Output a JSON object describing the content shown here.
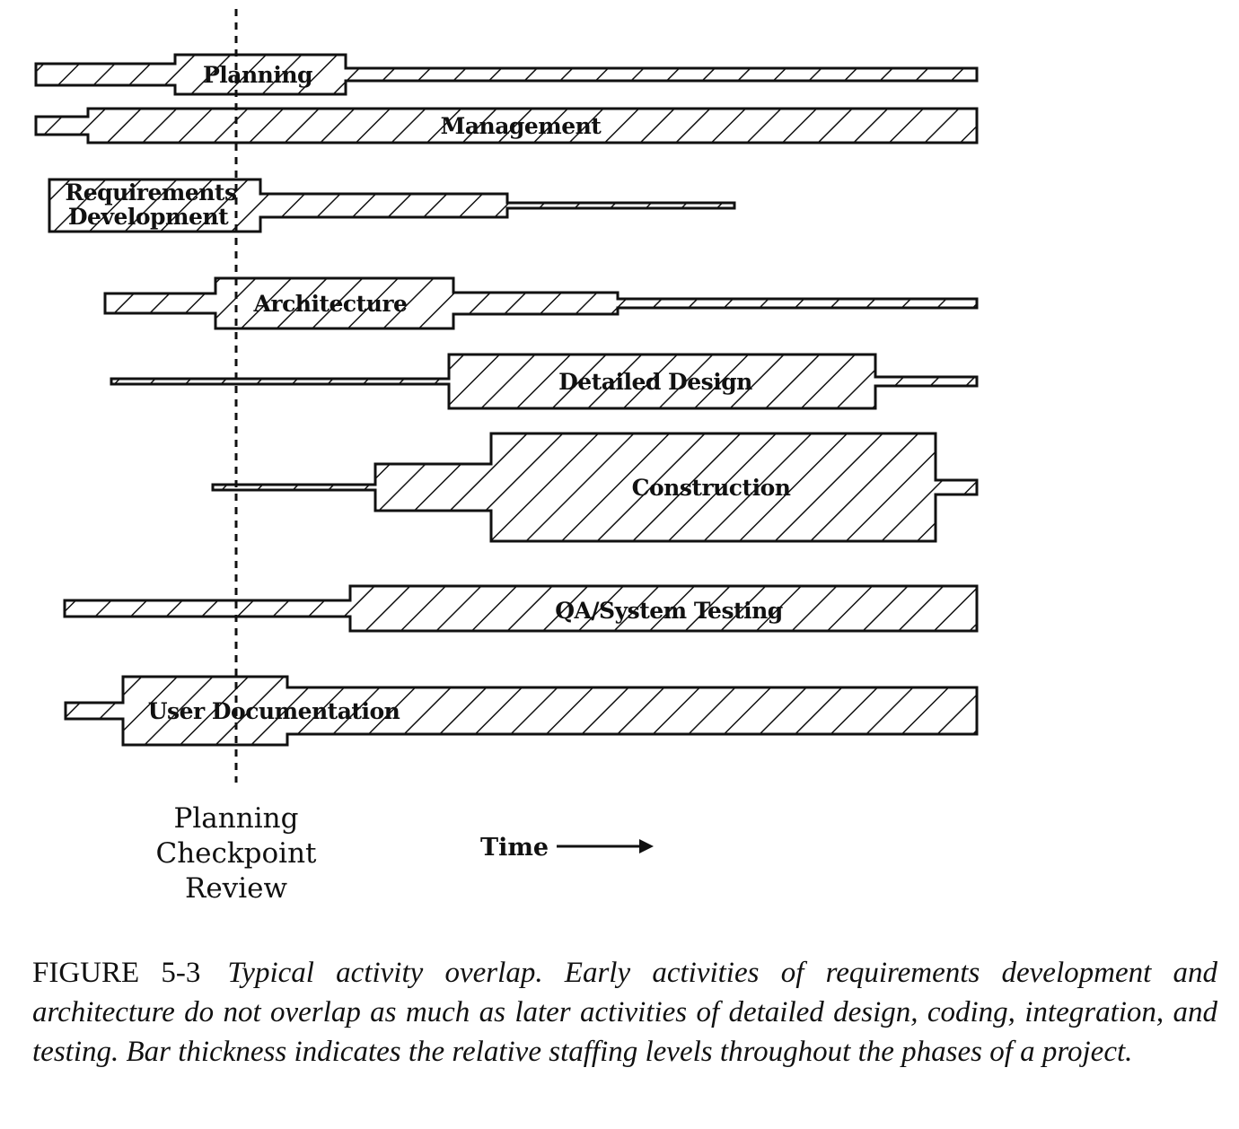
{
  "activities": [
    {
      "label": "Planning"
    },
    {
      "label": "Management"
    },
    {
      "label": "Requirements",
      "label2": "Development"
    },
    {
      "label": "Architecture"
    },
    {
      "label": "Detailed Design"
    },
    {
      "label": "Construction"
    },
    {
      "label": "QA/System Testing"
    },
    {
      "label": "User Documentation"
    }
  ],
  "checkpoint": {
    "line1": "Planning",
    "line2": "Checkpoint",
    "line3": "Review"
  },
  "time_axis": {
    "label": "Time"
  },
  "caption": {
    "figure": "FIGURE 5-3",
    "text": "Typical activity overlap. Early activities of requirements development and architecture do not overlap as much as later activities of detailed design, coding, integration, and testing. Bar thickness indicates the relative staffing levels throughout the phases of a project."
  },
  "colors": {
    "ink": "#111111",
    "paper": "#ffffff"
  }
}
